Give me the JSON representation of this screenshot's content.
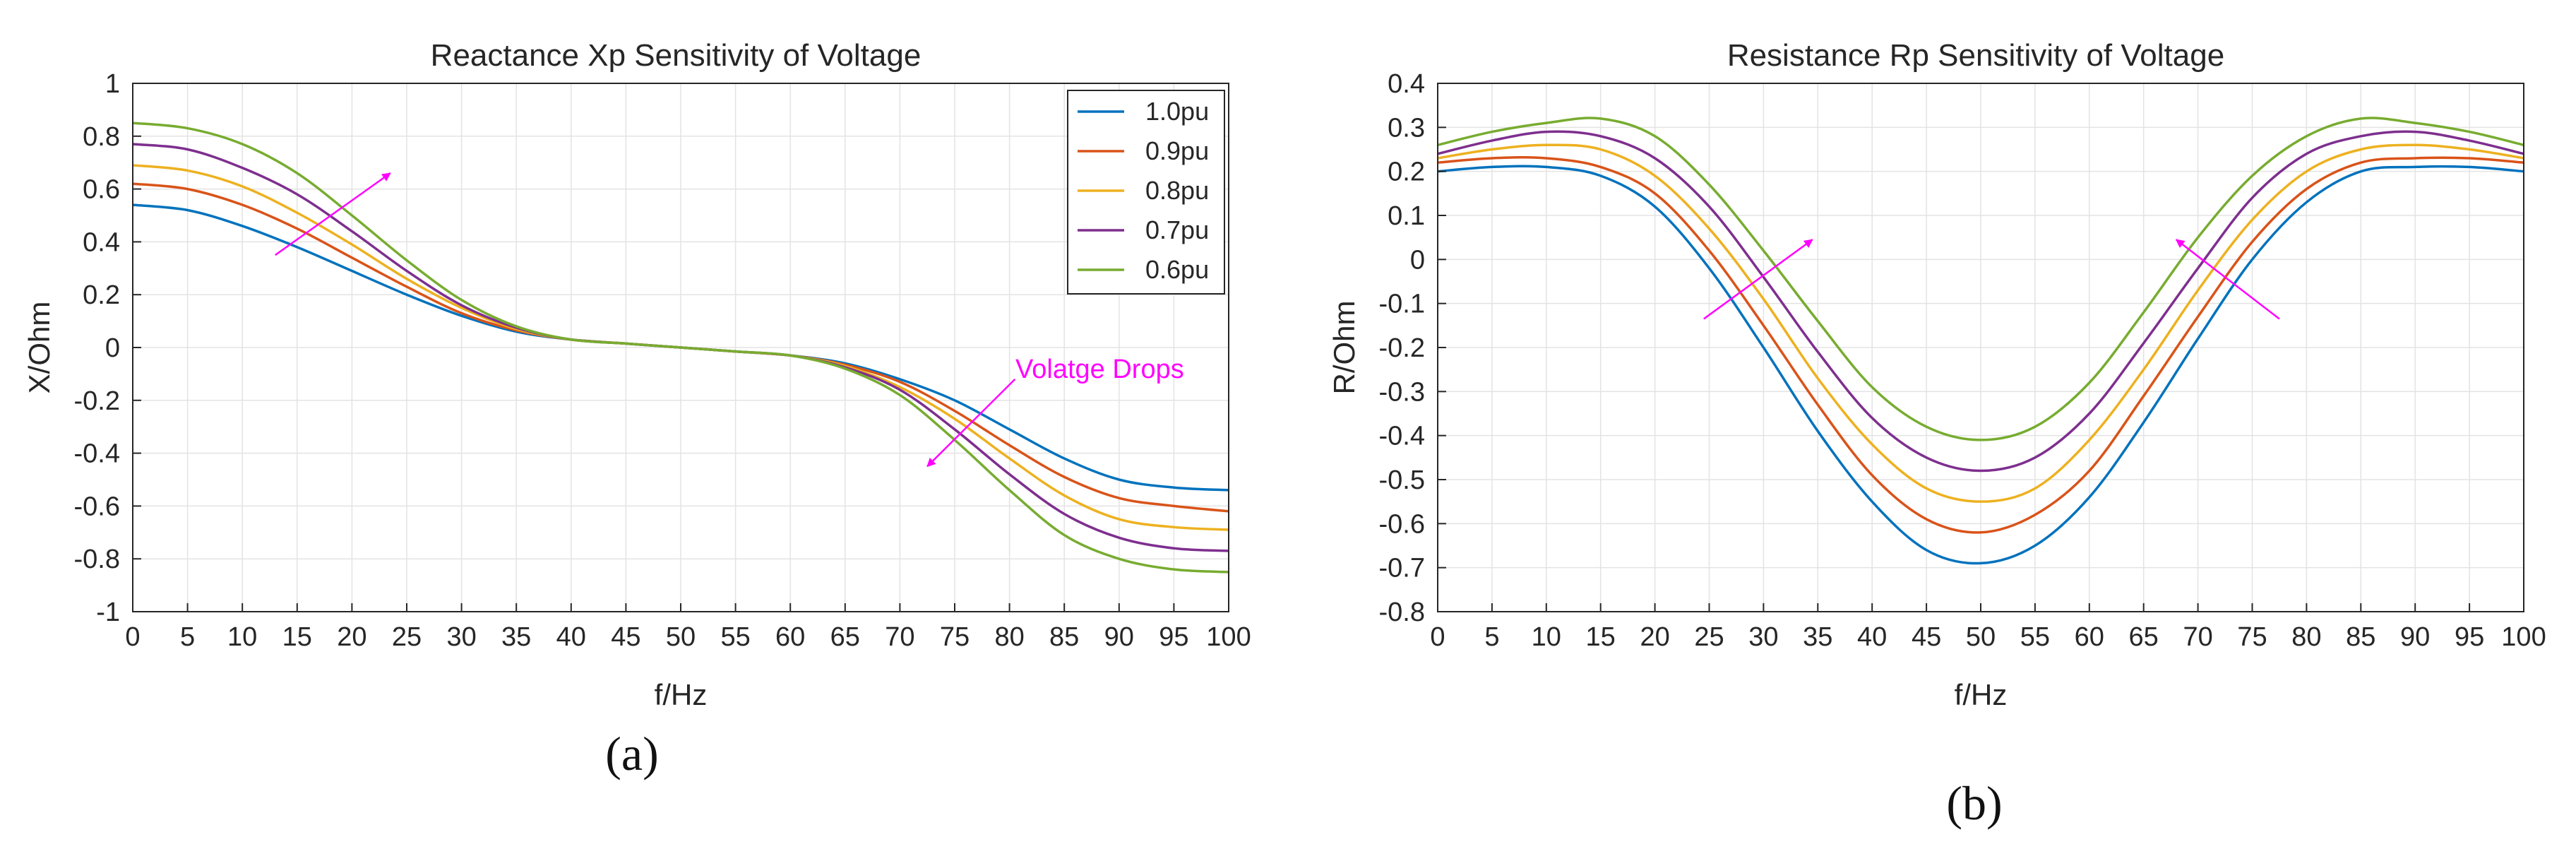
{
  "chart_data": [
    {
      "type": "line",
      "panel": "a",
      "panel_label_text": "(a)",
      "title": "Reactance Xp Sensitivity of Voltage",
      "xlabel": "f/Hz",
      "ylabel": "X/Ohm",
      "xlim": [
        0,
        100
      ],
      "ylim": [
        -1,
        1
      ],
      "xticks": [
        0,
        5,
        10,
        15,
        20,
        25,
        30,
        35,
        40,
        45,
        50,
        55,
        60,
        65,
        70,
        75,
        80,
        85,
        90,
        95,
        100
      ],
      "xtick_labels": [
        "0",
        "5",
        "10",
        "15",
        "20",
        "25",
        "30",
        "35",
        "40",
        "45",
        "50",
        "55",
        "60",
        "65",
        "70",
        "75",
        "80",
        "85",
        "90",
        "95",
        "100"
      ],
      "yticks": [
        -1,
        -0.8,
        -0.6,
        -0.4,
        -0.2,
        0,
        0.2,
        0.4,
        0.6,
        0.8,
        1
      ],
      "ytick_labels": [
        "-1",
        "-0.8",
        "-0.6",
        "-0.4",
        "-0.2",
        "0",
        "0.2",
        "0.4",
        "0.6",
        "0.8",
        "1"
      ],
      "grid": true,
      "legend_position": "top-right",
      "x": [
        0,
        5,
        10,
        15,
        20,
        25,
        30,
        35,
        40,
        45,
        50,
        55,
        60,
        65,
        70,
        75,
        80,
        85,
        90,
        95,
        100
      ],
      "series": [
        {
          "name": "1.0pu",
          "color": "#0072BD",
          "values": [
            0.54,
            0.52,
            0.46,
            0.38,
            0.29,
            0.2,
            0.12,
            0.06,
            0.03,
            0.015,
            0.0,
            -0.015,
            -0.03,
            -0.06,
            -0.12,
            -0.2,
            -0.31,
            -0.42,
            -0.5,
            -0.53,
            -0.54
          ]
        },
        {
          "name": "0.9pu",
          "color": "#D95319",
          "values": [
            0.62,
            0.6,
            0.54,
            0.45,
            0.34,
            0.23,
            0.13,
            0.065,
            0.03,
            0.015,
            0.0,
            -0.015,
            -0.03,
            -0.065,
            -0.13,
            -0.24,
            -0.37,
            -0.49,
            -0.57,
            -0.6,
            -0.62
          ]
        },
        {
          "name": "0.8pu",
          "color": "#EDB120",
          "values": [
            0.69,
            0.67,
            0.61,
            0.51,
            0.39,
            0.26,
            0.15,
            0.07,
            0.03,
            0.015,
            0.0,
            -0.015,
            -0.03,
            -0.07,
            -0.15,
            -0.27,
            -0.42,
            -0.56,
            -0.65,
            -0.68,
            -0.69
          ]
        },
        {
          "name": "0.7pu",
          "color": "#7E2F8E",
          "values": [
            0.77,
            0.75,
            0.68,
            0.58,
            0.44,
            0.29,
            0.16,
            0.075,
            0.03,
            0.015,
            0.0,
            -0.015,
            -0.03,
            -0.075,
            -0.16,
            -0.31,
            -0.48,
            -0.63,
            -0.72,
            -0.76,
            -0.77
          ]
        },
        {
          "name": "0.6pu",
          "color": "#77AC30",
          "values": [
            0.85,
            0.83,
            0.77,
            0.66,
            0.5,
            0.33,
            0.18,
            0.08,
            0.03,
            0.015,
            0.0,
            -0.015,
            -0.03,
            -0.08,
            -0.18,
            -0.35,
            -0.54,
            -0.71,
            -0.8,
            -0.84,
            -0.85
          ]
        }
      ],
      "annotations": [
        {
          "text": "Volatge Drops",
          "x": 79,
          "y": -0.08,
          "color": "#FF00FF"
        }
      ],
      "arrows": [
        {
          "from": [
            13,
            0.35
          ],
          "to": [
            23.5,
            0.66
          ],
          "color": "#FF00FF"
        },
        {
          "from": [
            80.5,
            -0.12
          ],
          "to": [
            72.5,
            -0.45
          ],
          "color": "#FF00FF"
        }
      ]
    },
    {
      "type": "line",
      "panel": "b",
      "panel_label_text": "(b)",
      "title": "Resistance Rp Sensitivity of Voltage",
      "xlabel": "f/Hz",
      "ylabel": "R/Ohm",
      "xlim": [
        0,
        100
      ],
      "ylim": [
        -0.8,
        0.4
      ],
      "xticks": [
        0,
        5,
        10,
        15,
        20,
        25,
        30,
        35,
        40,
        45,
        50,
        55,
        60,
        65,
        70,
        75,
        80,
        85,
        90,
        95,
        100
      ],
      "xtick_labels": [
        "0",
        "5",
        "10",
        "15",
        "20",
        "25",
        "30",
        "35",
        "40",
        "45",
        "50",
        "55",
        "60",
        "65",
        "70",
        "75",
        "80",
        "85",
        "90",
        "95",
        "100"
      ],
      "yticks": [
        -0.8,
        -0.7,
        -0.6,
        -0.5,
        -0.4,
        -0.3,
        -0.2,
        -0.1,
        0,
        0.1,
        0.2,
        0.3,
        0.4
      ],
      "ytick_labels": [
        "-0.8",
        "-0.7",
        "-0.6",
        "-0.5",
        "-0.4",
        "-0.3",
        "-0.2",
        "-0.1",
        "0",
        "0.1",
        "0.2",
        "0.3",
        "0.4"
      ],
      "grid": true,
      "x": [
        0,
        5,
        10,
        15,
        20,
        25,
        30,
        35,
        40,
        45,
        50,
        55,
        60,
        65,
        70,
        75,
        80,
        85,
        90,
        95,
        100
      ],
      "series": [
        {
          "name": "1.0pu",
          "color": "#0072BD",
          "values": [
            0.2,
            0.21,
            0.21,
            0.19,
            0.12,
            -0.02,
            -0.2,
            -0.39,
            -0.55,
            -0.66,
            -0.69,
            -0.65,
            -0.54,
            -0.37,
            -0.18,
            0.0,
            0.13,
            0.2,
            0.21,
            0.21,
            0.2
          ]
        },
        {
          "name": "0.9pu",
          "color": "#D95319",
          "values": [
            0.22,
            0.23,
            0.23,
            0.21,
            0.15,
            0.02,
            -0.15,
            -0.33,
            -0.49,
            -0.59,
            -0.62,
            -0.58,
            -0.48,
            -0.31,
            -0.13,
            0.04,
            0.16,
            0.22,
            0.23,
            0.23,
            0.22
          ]
        },
        {
          "name": "0.8pu",
          "color": "#EDB120",
          "values": [
            0.23,
            0.25,
            0.26,
            0.25,
            0.19,
            0.07,
            -0.09,
            -0.27,
            -0.42,
            -0.52,
            -0.55,
            -0.52,
            -0.41,
            -0.25,
            -0.07,
            0.09,
            0.2,
            0.25,
            0.26,
            0.25,
            0.23
          ]
        },
        {
          "name": "0.7pu",
          "color": "#7E2F8E",
          "values": [
            0.24,
            0.27,
            0.29,
            0.28,
            0.23,
            0.12,
            -0.04,
            -0.21,
            -0.36,
            -0.45,
            -0.48,
            -0.45,
            -0.35,
            -0.19,
            -0.02,
            0.14,
            0.24,
            0.28,
            0.29,
            0.27,
            0.24
          ]
        },
        {
          "name": "0.6pu",
          "color": "#77AC30",
          "values": [
            0.26,
            0.29,
            0.31,
            0.32,
            0.28,
            0.17,
            0.02,
            -0.14,
            -0.29,
            -0.38,
            -0.41,
            -0.38,
            -0.28,
            -0.12,
            0.05,
            0.19,
            0.28,
            0.32,
            0.31,
            0.29,
            0.26
          ]
        }
      ],
      "arrows": [
        {
          "from": [
            24.5,
            -0.135
          ],
          "to": [
            34.5,
            0.045
          ],
          "color": "#FF00FF"
        },
        {
          "from": [
            77.5,
            -0.135
          ],
          "to": [
            68,
            0.045
          ],
          "color": "#FF00FF"
        }
      ]
    }
  ]
}
